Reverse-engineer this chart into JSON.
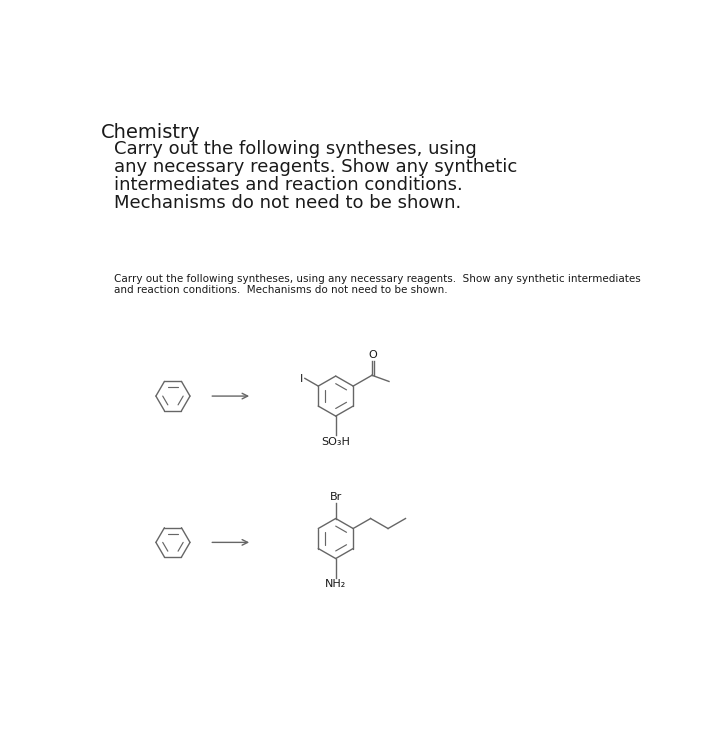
{
  "title": "Chemistry",
  "paragraph_line1": "Carry out the following syntheses, using",
  "paragraph_line2": "any necessary reagents. Show any synthetic",
  "paragraph_line3": "intermediates and reaction conditions.",
  "paragraph_line4": "Mechanisms do not need to be shown.",
  "small_text_line1": "Carry out the following syntheses, using any necessary reagents.  Show any synthetic intermediates",
  "small_text_line2": "and reaction conditions.  Mechanisms do not need to be shown.",
  "bg_color": "#ffffff",
  "text_color": "#1a1a1a",
  "line_color": "#666666",
  "so3h_label": "SO₃H",
  "br_label": "Br",
  "nh2_label": "NH₂",
  "i_label": "I",
  "o_label": "O",
  "title_fontsize": 14,
  "para_fontsize": 13,
  "small_fontsize": 7.5,
  "label_fontsize": 8
}
